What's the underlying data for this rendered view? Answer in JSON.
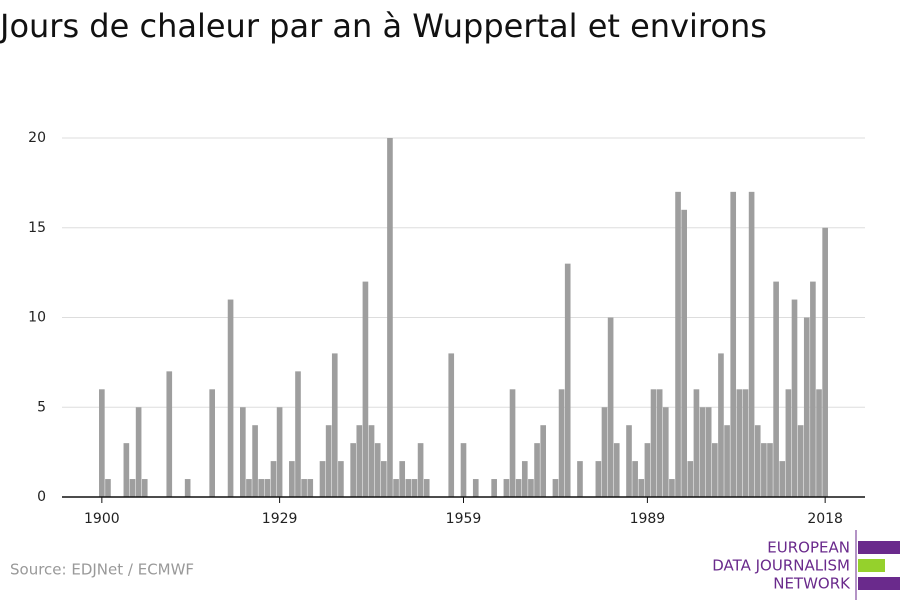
{
  "chart_data": {
    "type": "bar",
    "title": "Jours de chaleur par an à Wuppertal et environs",
    "x": [
      1900,
      1901,
      1902,
      1903,
      1904,
      1905,
      1906,
      1907,
      1908,
      1909,
      1910,
      1911,
      1912,
      1913,
      1914,
      1915,
      1916,
      1917,
      1918,
      1919,
      1920,
      1921,
      1922,
      1923,
      1924,
      1925,
      1926,
      1927,
      1928,
      1929,
      1930,
      1931,
      1932,
      1933,
      1934,
      1935,
      1936,
      1937,
      1938,
      1939,
      1940,
      1941,
      1942,
      1943,
      1944,
      1945,
      1946,
      1947,
      1948,
      1949,
      1950,
      1951,
      1952,
      1953,
      1954,
      1955,
      1956,
      1957,
      1958,
      1959,
      1960,
      1961,
      1962,
      1963,
      1964,
      1965,
      1966,
      1967,
      1968,
      1969,
      1970,
      1971,
      1972,
      1973,
      1974,
      1975,
      1976,
      1977,
      1978,
      1979,
      1980,
      1981,
      1982,
      1983,
      1984,
      1985,
      1986,
      1987,
      1988,
      1989,
      1990,
      1991,
      1992,
      1993,
      1994,
      1995,
      1996,
      1997,
      1998,
      1999,
      2000,
      2001,
      2002,
      2003,
      2004,
      2005,
      2006,
      2007,
      2008,
      2009,
      2010,
      2011,
      2012,
      2013,
      2014,
      2015,
      2016,
      2017,
      2018
    ],
    "values": [
      6,
      1,
      0,
      0,
      3,
      1,
      5,
      1,
      0,
      0,
      0,
      7,
      0,
      0,
      1,
      0,
      0,
      0,
      6,
      0,
      0,
      11,
      0,
      5,
      1,
      4,
      1,
      1,
      2,
      5,
      0,
      2,
      7,
      1,
      1,
      0,
      2,
      4,
      8,
      2,
      0,
      3,
      4,
      12,
      4,
      3,
      2,
      20,
      1,
      2,
      1,
      1,
      3,
      1,
      0,
      0,
      0,
      8,
      0,
      3,
      0,
      1,
      0,
      0,
      1,
      0,
      1,
      6,
      1,
      2,
      1,
      3,
      4,
      0,
      1,
      6,
      13,
      0,
      2,
      0,
      0,
      2,
      5,
      10,
      3,
      0,
      4,
      2,
      1,
      3,
      6,
      6,
      5,
      1,
      17,
      16,
      2,
      6,
      5,
      5,
      3,
      8,
      4,
      17,
      6,
      6,
      17,
      4,
      3,
      3,
      12,
      2,
      6,
      11,
      4,
      10,
      12,
      6,
      15
    ],
    "color": "#9e9e9e",
    "xlim": [
      1893.5,
      2024.5
    ],
    "xticks": [
      1900,
      1929,
      1959,
      1989,
      2018
    ],
    "ylim": [
      0,
      20
    ],
    "yticks": [
      0,
      5,
      10,
      15,
      20
    ],
    "grid": true,
    "source": "Source: EDJNet / ECMWF",
    "logo": [
      "EUROPEAN",
      "DATA JOURNALISM",
      "NETWORK"
    ]
  }
}
